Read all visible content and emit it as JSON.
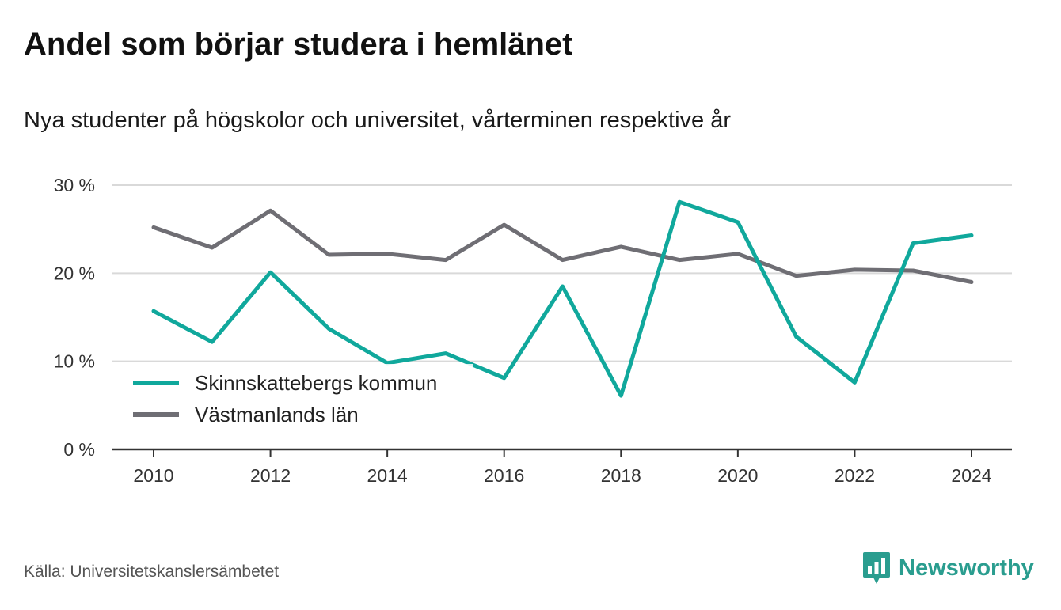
{
  "header": {
    "title": "Andel som börjar studera i hemlänet",
    "subtitle": "Nya studenter på högskolor och universitet, vårterminen respektive år"
  },
  "footer": {
    "source": "Källa: Universitetskanslersämbetet",
    "brand": "Newsworthy",
    "brand_icon": "bar-chart-speech-bubble-icon"
  },
  "colors": {
    "series1": "#10a89c",
    "series2": "#6f6e74",
    "grid": "#d9d9d9",
    "axis": "#333333",
    "brand": "#2a9d8f"
  },
  "chart_data": {
    "type": "line",
    "x": [
      2010,
      2011,
      2012,
      2013,
      2014,
      2015,
      2016,
      2017,
      2018,
      2019,
      2020,
      2021,
      2022,
      2023,
      2024
    ],
    "series": [
      {
        "name": "Skinnskattebergs kommun",
        "values": [
          15.7,
          12.2,
          20.1,
          13.7,
          9.8,
          10.9,
          8.1,
          18.5,
          6.1,
          28.1,
          25.8,
          12.8,
          7.6,
          23.4,
          24.3
        ]
      },
      {
        "name": "Västmanlands län",
        "values": [
          25.2,
          22.9,
          27.1,
          22.1,
          22.2,
          21.5,
          25.5,
          21.5,
          23.0,
          21.5,
          22.2,
          19.7,
          20.4,
          20.3,
          19.0
        ]
      }
    ],
    "ylim": [
      0,
      30
    ],
    "yticks": [
      0,
      10,
      20,
      30
    ],
    "ytick_labels": [
      "0 %",
      "10 %",
      "20 %",
      "30 %"
    ],
    "xticks": [
      2010,
      2012,
      2014,
      2016,
      2018,
      2020,
      2022,
      2024
    ],
    "xtick_labels": [
      "2010",
      "2012",
      "2014",
      "2016",
      "2018",
      "2020",
      "2022",
      "2024"
    ],
    "grid": true,
    "legend_position": "bottom-left"
  }
}
